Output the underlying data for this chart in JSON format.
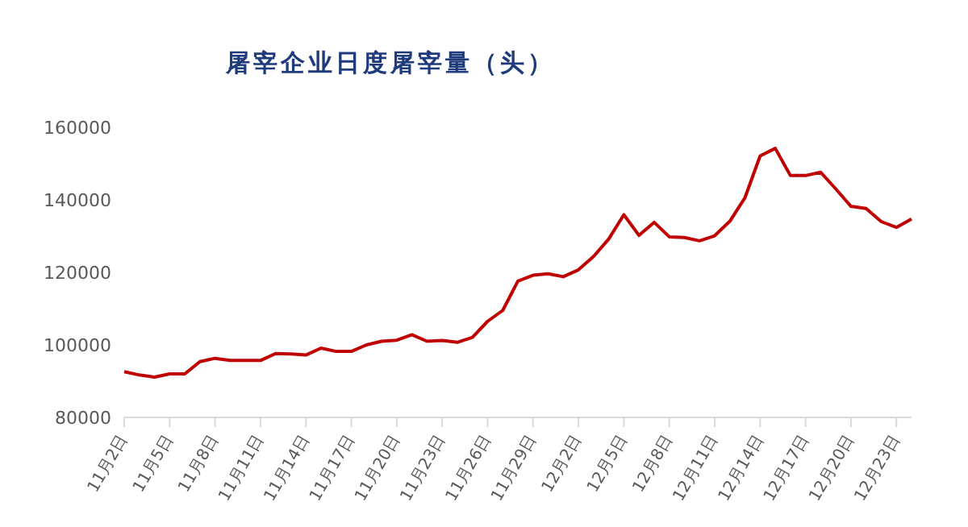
{
  "chart_data": {
    "type": "line",
    "title": "屠宰企业日度屠宰量（头）",
    "categories": [
      "11月2日",
      null,
      null,
      "11月5日",
      null,
      null,
      "11月8日",
      null,
      null,
      "11月11日",
      null,
      null,
      "11月14日",
      null,
      null,
      "11月17日",
      null,
      null,
      "11月20日",
      null,
      null,
      "11月23日",
      null,
      null,
      "11月26日",
      null,
      null,
      "11月29日",
      null,
      null,
      "12月2日",
      null,
      null,
      "12月5日",
      null,
      null,
      "12月8日",
      null,
      null,
      "12月11日",
      null,
      null,
      "12月14日",
      null,
      null,
      "12月17日",
      null,
      null,
      "12月20日",
      null,
      null,
      "12月23日",
      null
    ],
    "series": [
      {
        "color": "#c00000",
        "values": [
          92600,
          91700,
          91100,
          92000,
          92000,
          95400,
          96300,
          95700,
          95700,
          95700,
          97600,
          97500,
          97200,
          99100,
          98200,
          98200,
          100000,
          101000,
          101300,
          102800,
          101000,
          101200,
          100700,
          102100,
          106500,
          109500,
          117600,
          119200,
          119600,
          118800,
          120700,
          124400,
          129200,
          135900,
          130200,
          133800,
          129800,
          129600,
          128700,
          130100,
          134100,
          140600,
          152100,
          154200,
          146700,
          146700,
          147600,
          143000,
          138200,
          137600,
          134000,
          132400,
          134700
        ]
      }
    ],
    "ylim": [
      80000,
      160000
    ],
    "yticks": [
      80000,
      100000,
      120000,
      140000,
      160000
    ],
    "grid": false,
    "legend": false,
    "marker": "none",
    "line_style": "solid"
  }
}
